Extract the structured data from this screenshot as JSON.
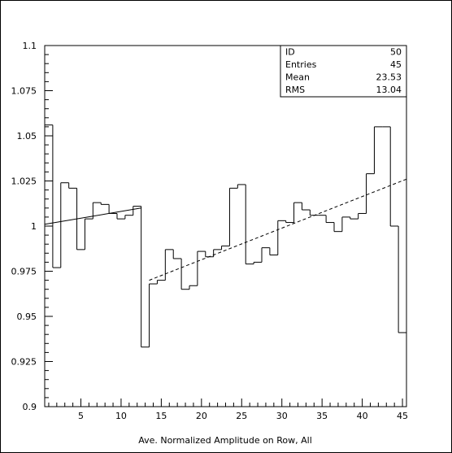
{
  "chart_data": {
    "type": "histogram",
    "title": "",
    "xlabel": "Ave. Normalized Amplitude on Row, All",
    "ylabel": "",
    "xlim": [
      0.5,
      45.5
    ],
    "ylim": [
      0.9,
      1.1
    ],
    "x_ticks": [
      5,
      10,
      15,
      20,
      25,
      30,
      35,
      40,
      45
    ],
    "y_ticks": [
      0.9,
      0.925,
      0.95,
      0.975,
      1,
      1.025,
      1.05,
      1.075,
      1.1
    ],
    "x_tick_labels": [
      "5",
      "10",
      "15",
      "20",
      "25",
      "30",
      "35",
      "40",
      "45"
    ],
    "y_tick_labels": [
      "0.9",
      "0.925",
      "0.95",
      "0.975",
      "1",
      "1.025",
      "1.05",
      "1.075",
      "1.1"
    ],
    "bins": [
      1,
      2,
      3,
      4,
      5,
      6,
      7,
      8,
      9,
      10,
      11,
      12,
      13,
      14,
      15,
      16,
      17,
      18,
      19,
      20,
      21,
      22,
      23,
      24,
      25,
      26,
      27,
      28,
      29,
      30,
      31,
      32,
      33,
      34,
      35,
      36,
      37,
      38,
      39,
      40,
      41,
      42,
      43,
      44,
      45
    ],
    "values": [
      1.056,
      0.977,
      1.024,
      1.021,
      0.987,
      1.004,
      1.013,
      1.012,
      1.007,
      1.004,
      1.006,
      1.011,
      0.933,
      0.968,
      0.97,
      0.987,
      0.982,
      0.965,
      0.967,
      0.986,
      0.983,
      0.987,
      0.989,
      1.021,
      1.023,
      0.979,
      0.98,
      0.988,
      0.984,
      1.003,
      1.002,
      1.013,
      1.009,
      1.006,
      1.006,
      1.002,
      0.997,
      1.005,
      1.004,
      1.007,
      1.029,
      1.055,
      1.055,
      1.0,
      0.941
    ],
    "fits": [
      {
        "style": "solid",
        "x": [
          0.5,
          12.5
        ],
        "y": [
          1.001,
          1.01
        ]
      },
      {
        "style": "dashed",
        "x": [
          13.5,
          45.5
        ],
        "y": [
          0.97,
          1.026
        ]
      }
    ],
    "stats": [
      {
        "label": "ID",
        "value": "50"
      },
      {
        "label": "Entries",
        "value": "45"
      },
      {
        "label": "Mean",
        "value": "23.53"
      },
      {
        "label": "RMS",
        "value": "13.04"
      }
    ],
    "grid": false,
    "stats_box_position": "top-right"
  }
}
